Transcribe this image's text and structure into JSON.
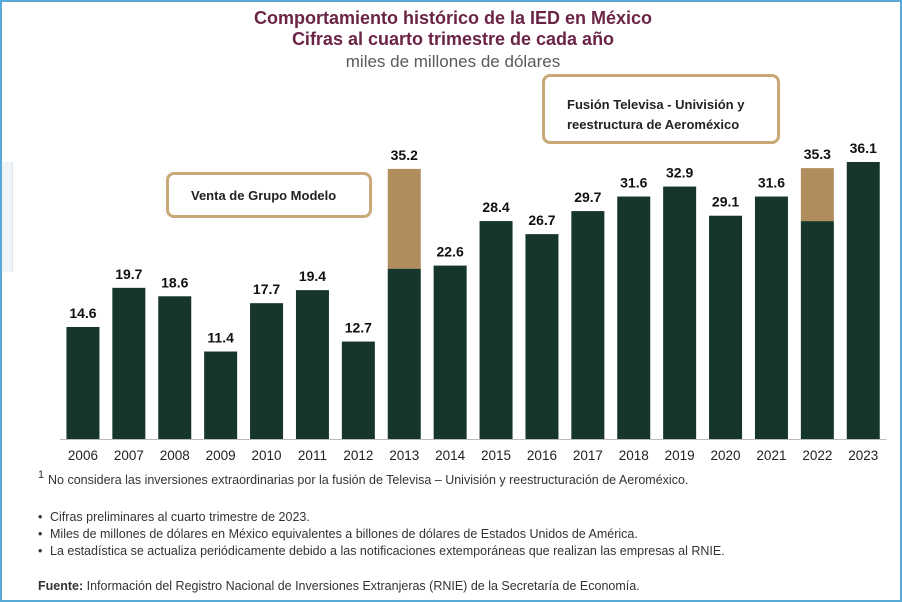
{
  "title_line1": "Comportamiento histórico de la IED en México",
  "title_line2": "Cifras al cuarto trimestre de cada año",
  "subtitle": "miles de millones de dólares",
  "callouts": {
    "grupo_modelo": "Venta de Grupo Modelo",
    "televisa_line1": "Fusión Televisa - Univisión y",
    "televisa_line2": "reestructura de Aeroméxico"
  },
  "footnote_marker": "1",
  "footnote": "No considera las inversiones extraordinarias por la fusión de Televisa – Univisión y reestructuración de Aeroméxico.",
  "bullets": [
    "Cifras preliminares al cuarto trimestre de 2023.",
    "Miles de millones de dólares en México equivalentes a billones de dólares de Estados Unidos de América.",
    "La estadística se actualiza periódicamente debido a las notificaciones extemporáneas que realizan las empresas al RNIE."
  ],
  "source_label": "Fuente:",
  "source_text": "Información del Registro Nacional de Inversiones Extranjeras (RNIE) de la Secretaría de Economía.",
  "colors": {
    "bar": "#16362b",
    "extraordinary": "#b08d5c",
    "title": "#6b2445",
    "callout_border": "#c8a977",
    "frame_border": "#58a8d8"
  },
  "chart_data": {
    "type": "bar",
    "stacked": true,
    "title": "Comportamiento histórico de la IED en México",
    "subtitle": "Cifras al cuarto trimestre de cada año",
    "ylabel": "miles de millones de dólares",
    "ylim": [
      0,
      36.1
    ],
    "grid": false,
    "categories": [
      "2006",
      "2007",
      "2008",
      "2009",
      "2010",
      "2011",
      "2012",
      "2013",
      "2014",
      "2015",
      "2016",
      "2017",
      "2018",
      "2019",
      "2020",
      "2021",
      "2022",
      "2023"
    ],
    "series": [
      {
        "values": [
          14.6,
          19.7,
          18.6,
          11.4,
          17.7,
          19.4,
          12.7,
          22.2,
          22.6,
          28.4,
          26.7,
          29.7,
          31.6,
          32.9,
          29.1,
          31.6,
          28.4,
          36.1
        ]
      },
      {
        "values": [
          0,
          0,
          0,
          0,
          0,
          0,
          0,
          13.0,
          0,
          0,
          0,
          0,
          0,
          0,
          0,
          0,
          6.9,
          0
        ]
      }
    ],
    "totals": [
      14.6,
      19.7,
      18.6,
      11.4,
      17.7,
      19.4,
      12.7,
      35.2,
      22.6,
      28.4,
      26.7,
      29.7,
      31.6,
      32.9,
      29.1,
      31.6,
      35.3,
      36.1
    ],
    "data_labels": [
      "14.6",
      "19.7",
      "18.6",
      "11.4",
      "17.7",
      "19.4",
      "12.7",
      "35.2",
      "22.6",
      "28.4",
      "26.7",
      "29.7",
      "31.6",
      "32.9",
      "29.1",
      "31.6",
      "35.3",
      "36.1"
    ]
  }
}
